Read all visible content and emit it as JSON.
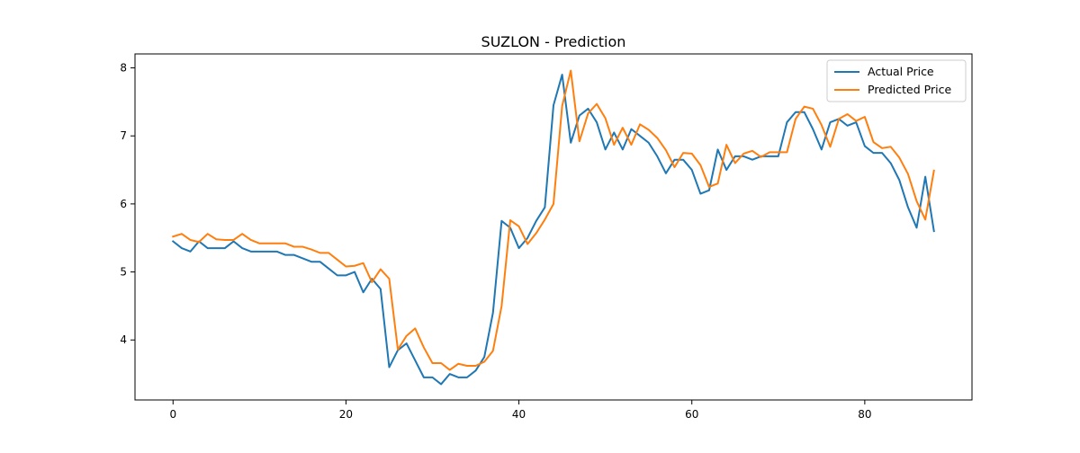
{
  "chart_data": {
    "type": "line",
    "title": "SUZLON - Prediction",
    "xlabel": "",
    "ylabel": "",
    "xlim": [
      -4.4,
      92.4
    ],
    "ylim": [
      3.118,
      8.205
    ],
    "xticks": [
      0,
      20,
      40,
      60,
      80
    ],
    "yticks": [
      4,
      5,
      6,
      7,
      8
    ],
    "grid": false,
    "legend_position": "top-right",
    "x": [
      0,
      1,
      2,
      3,
      4,
      5,
      6,
      7,
      8,
      9,
      10,
      11,
      12,
      13,
      14,
      15,
      16,
      17,
      18,
      19,
      20,
      21,
      22,
      23,
      24,
      25,
      26,
      27,
      28,
      29,
      30,
      31,
      32,
      33,
      34,
      35,
      36,
      37,
      38,
      39,
      40,
      41,
      42,
      43,
      44,
      45,
      46,
      47,
      48,
      49,
      50,
      51,
      52,
      53,
      54,
      55,
      56,
      57,
      58,
      59,
      60,
      61,
      62,
      63,
      64,
      65,
      66,
      67,
      68,
      69,
      70,
      71,
      72,
      73,
      74,
      75,
      76,
      77,
      78,
      79,
      80,
      81,
      82,
      83,
      84,
      85,
      86,
      87,
      88
    ],
    "series": [
      {
        "name": "Actual Price",
        "color": "#1f77b4",
        "values": [
          5.45,
          5.35,
          5.3,
          5.45,
          5.35,
          5.35,
          5.35,
          5.45,
          5.35,
          5.3,
          5.3,
          5.3,
          5.3,
          5.25,
          5.25,
          5.2,
          5.15,
          5.15,
          5.05,
          4.95,
          4.95,
          5.0,
          4.7,
          4.9,
          4.75,
          3.6,
          3.85,
          3.95,
          3.7,
          3.45,
          3.45,
          3.35,
          3.5,
          3.45,
          3.45,
          3.55,
          3.75,
          4.4,
          5.75,
          5.65,
          5.35,
          5.5,
          5.75,
          5.95,
          7.45,
          7.9,
          6.9,
          7.3,
          7.4,
          7.2,
          6.8,
          7.05,
          6.8,
          7.1,
          7.0,
          6.9,
          6.7,
          6.45,
          6.65,
          6.65,
          6.5,
          6.15,
          6.2,
          6.8,
          6.5,
          6.7,
          6.7,
          6.65,
          6.7,
          6.7,
          6.7,
          7.2,
          7.35,
          7.35,
          7.1,
          6.8,
          7.2,
          7.25,
          7.15,
          7.2,
          6.85,
          6.75,
          6.75,
          6.6,
          6.35,
          5.95,
          5.65,
          6.4,
          5.6
        ]
      },
      {
        "name": "Predicted Price",
        "color": "#ff7f0e",
        "values": [
          5.52,
          5.56,
          5.47,
          5.44,
          5.56,
          5.48,
          5.47,
          5.47,
          5.56,
          5.47,
          5.42,
          5.42,
          5.42,
          5.42,
          5.37,
          5.37,
          5.33,
          5.28,
          5.28,
          5.18,
          5.08,
          5.09,
          5.13,
          4.85,
          5.04,
          4.9,
          3.86,
          4.06,
          4.17,
          3.89,
          3.66,
          3.66,
          3.56,
          3.65,
          3.62,
          3.62,
          3.68,
          3.84,
          4.5,
          5.76,
          5.67,
          5.41,
          5.57,
          5.77,
          6.0,
          7.44,
          7.96,
          6.92,
          7.33,
          7.47,
          7.26,
          6.87,
          7.12,
          6.87,
          7.17,
          7.09,
          6.97,
          6.79,
          6.54,
          6.75,
          6.74,
          6.57,
          6.25,
          6.3,
          6.87,
          6.6,
          6.74,
          6.78,
          6.69,
          6.76,
          6.76,
          6.76,
          7.25,
          7.43,
          7.4,
          7.16,
          6.84,
          7.25,
          7.32,
          7.22,
          7.28,
          6.91,
          6.82,
          6.84,
          6.68,
          6.44,
          6.04,
          5.77,
          6.49
        ]
      }
    ]
  }
}
